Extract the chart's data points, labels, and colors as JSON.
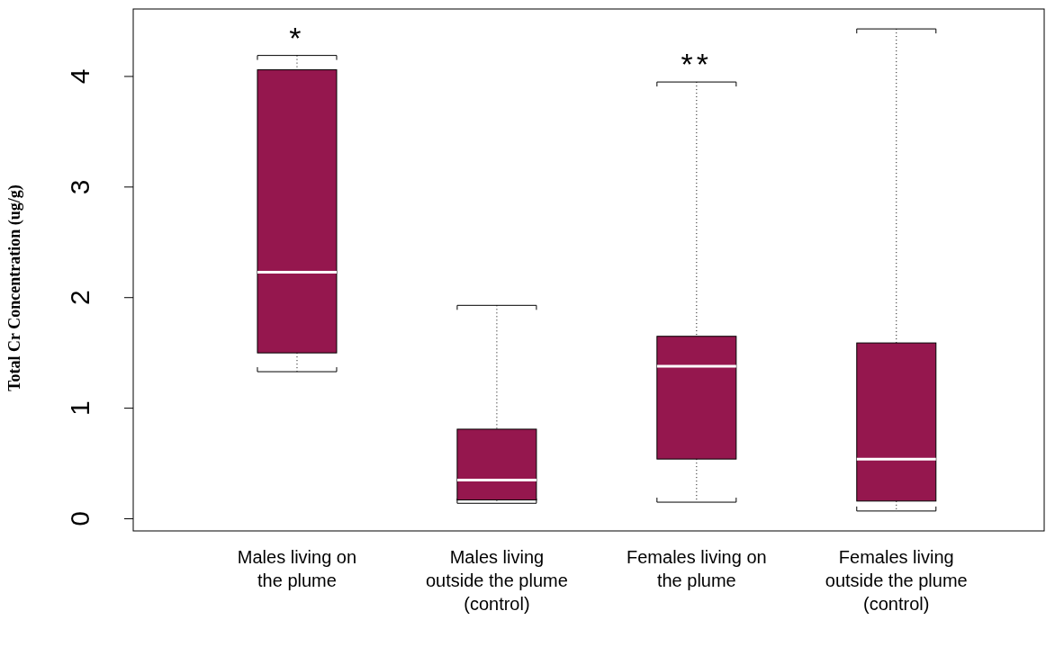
{
  "chart_data": {
    "type": "box",
    "ylabel": "Total Cr Concentration (ug/g)",
    "categories": [
      "Males living on the plume",
      "Males living outside the plume (control)",
      "Females living on the plume",
      "Females living outside the plume (control)"
    ],
    "color": "#95174e",
    "boxes": [
      {
        "low": 1.33,
        "q1": 1.5,
        "median": 2.23,
        "q3": 4.06,
        "high": 4.19
      },
      {
        "low": 0.14,
        "q1": 0.17,
        "median": 0.35,
        "q3": 0.81,
        "high": 1.93
      },
      {
        "low": 0.15,
        "q1": 0.54,
        "median": 1.38,
        "q3": 1.65,
        "high": 3.95
      },
      {
        "low": 0.07,
        "q1": 0.16,
        "median": 0.54,
        "q3": 1.59,
        "high": 4.43
      }
    ],
    "ylim": [
      -0.11,
      4.61
    ],
    "yticks": [
      0,
      1,
      2,
      3,
      4
    ],
    "annotations": [
      {
        "text": "*",
        "x": "Males living on the plume",
        "y": 4.19
      },
      {
        "text": "**",
        "x": "Females living on the plume",
        "y": 3.95
      }
    ]
  }
}
